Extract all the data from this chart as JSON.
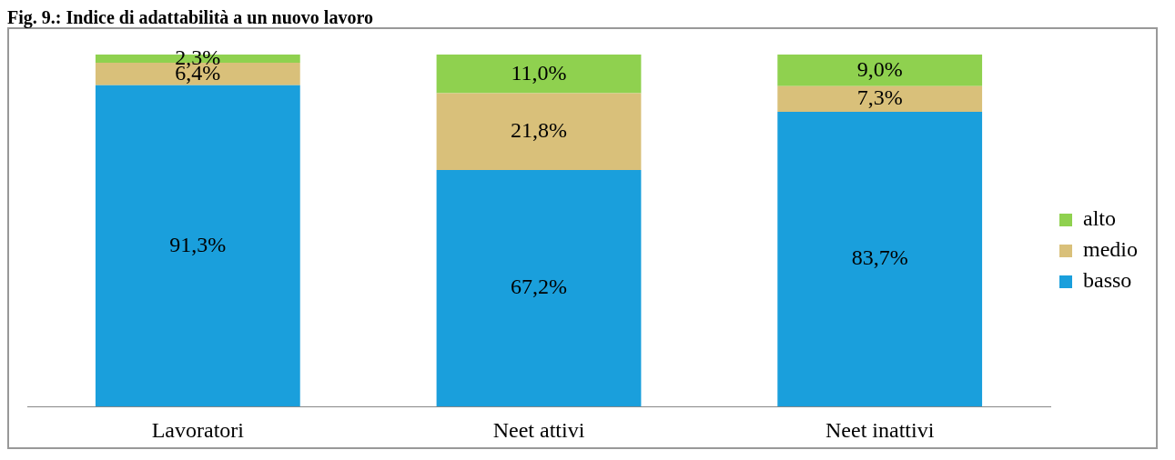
{
  "chart_data": {
    "type": "bar",
    "title": "Fig. 9.: Indice di adattabilità a un nuovo lavoro",
    "categories": [
      "Lavoratori",
      "Neet attivi",
      "Neet inattivi"
    ],
    "stacked": true,
    "legend": "right",
    "grid": false,
    "tick_labels": "x",
    "series": [
      {
        "name": "basso",
        "color": "#1a9fdc",
        "values": [
          91.3,
          67.2,
          83.7
        ],
        "value_labels": [
          "91,3%",
          "67,2%",
          "83,7%"
        ]
      },
      {
        "name": "medio",
        "color": "#d9c07a",
        "values": [
          6.4,
          21.8,
          7.3
        ],
        "value_labels": [
          "6,4%",
          "21,8%",
          "7,3%"
        ]
      },
      {
        "name": "alto",
        "color": "#8fd14f",
        "values": [
          2.3,
          11.0,
          9.0
        ],
        "value_labels": [
          "2,3%",
          "11,0%",
          "9,0%"
        ]
      }
    ]
  }
}
